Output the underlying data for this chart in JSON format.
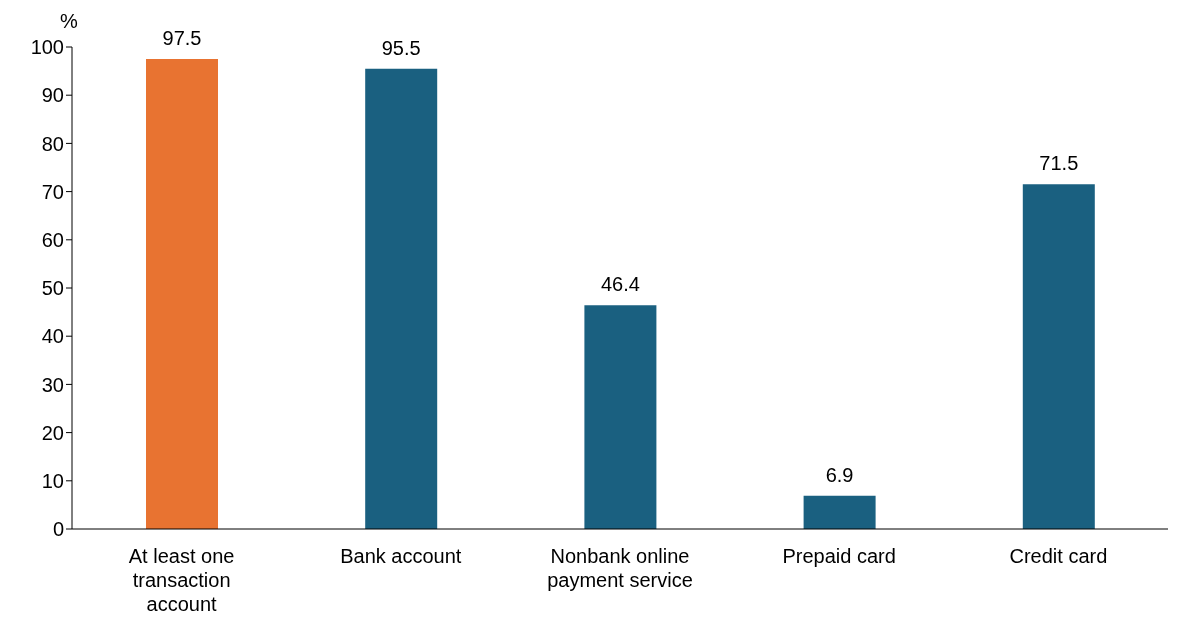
{
  "chart_data": {
    "type": "bar",
    "ylabel": "%",
    "categories": [
      "At least one transaction account",
      "Bank account",
      "Nonbank online payment service",
      "Prepaid card",
      "Credit card"
    ],
    "values": [
      97.5,
      95.5,
      46.4,
      6.9,
      71.5
    ],
    "colors": [
      "#e87331",
      "#1a6080",
      "#1a6080",
      "#1a6080",
      "#1a6080"
    ],
    "ylim": [
      0,
      100
    ],
    "yticks": [
      0,
      10,
      20,
      30,
      40,
      50,
      60,
      70,
      80,
      90,
      100
    ],
    "grid": false,
    "data_labels": true
  }
}
